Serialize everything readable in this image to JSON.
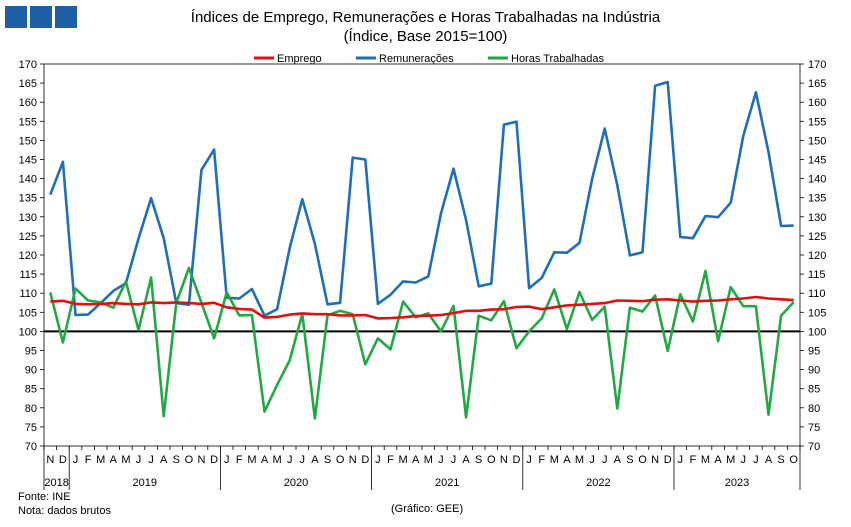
{
  "header": {
    "title": "Índices de Emprego, Remunerações e Horas Trabalhadas na Indústria",
    "subtitle": "(Índice, Base 2015=100)"
  },
  "footer": {
    "source": "Fonte: INE",
    "note": "Nota: dados brutos",
    "credit": "(Gráfico: GEE)"
  },
  "colors": {
    "logo": "#1f5fa8",
    "emprego": "#e01010",
    "remuneracoes": "#1f6fb8",
    "horas": "#22a845",
    "baseline": "#000000"
  },
  "chart_data": {
    "type": "line",
    "title": "Índices de Emprego, Remunerações e Horas Trabalhadas na Indústria",
    "subtitle": "(Índice, Base 2015=100)",
    "ylim": [
      70,
      170
    ],
    "yticks": [
      70,
      75,
      80,
      85,
      90,
      95,
      100,
      105,
      110,
      115,
      120,
      125,
      130,
      135,
      140,
      145,
      150,
      155,
      160,
      165,
      170
    ],
    "grid": false,
    "legend_position": "top",
    "reference_line": 100,
    "x": [
      "N",
      "D",
      "J",
      "F",
      "M",
      "A",
      "M",
      "J",
      "J",
      "A",
      "S",
      "O",
      "N",
      "D",
      "J",
      "F",
      "M",
      "A",
      "M",
      "J",
      "J",
      "A",
      "S",
      "O",
      "N",
      "D",
      "J",
      "F",
      "M",
      "A",
      "M",
      "J",
      "J",
      "A",
      "S",
      "O",
      "N",
      "D",
      "J",
      "F",
      "M",
      "A",
      "M",
      "J",
      "J",
      "A",
      "S",
      "O",
      "N",
      "D",
      "J",
      "F",
      "M",
      "A",
      "M",
      "J",
      "J",
      "A",
      "S",
      "O"
    ],
    "year_groups": [
      {
        "label": "2018",
        "start": 0,
        "end": 1
      },
      {
        "label": "2019",
        "start": 2,
        "end": 13
      },
      {
        "label": "2020",
        "start": 14,
        "end": 25
      },
      {
        "label": "2021",
        "start": 26,
        "end": 37
      },
      {
        "label": "2022",
        "start": 38,
        "end": 49
      },
      {
        "label": "2023",
        "start": 50,
        "end": 59
      }
    ],
    "series": [
      {
        "name": "Emprego",
        "values": [
          107.8,
          108.0,
          107.2,
          107.1,
          107.2,
          107.4,
          107.2,
          107.1,
          107.6,
          107.4,
          107.6,
          107.4,
          107.2,
          107.5,
          106.3,
          105.9,
          105.7,
          103.6,
          103.8,
          104.4,
          104.7,
          104.5,
          104.5,
          104.2,
          104.2,
          104.3,
          103.4,
          103.5,
          103.7,
          104.0,
          104.1,
          104.3,
          104.8,
          105.4,
          105.4,
          105.7,
          105.8,
          106.4,
          106.5,
          105.8,
          106.3,
          106.8,
          107.0,
          107.2,
          107.4,
          108.1,
          108.0,
          107.9,
          108.3,
          108.4,
          108.1,
          107.8,
          108.0,
          108.1,
          108.4,
          108.6,
          109.0,
          108.6,
          108.4,
          108.2
        ]
      },
      {
        "name": "Remunerações",
        "values": [
          135.8,
          144.4,
          104.3,
          104.4,
          107.4,
          110.6,
          112.6,
          124.3,
          134.9,
          124.4,
          107.4,
          107.0,
          142.3,
          147.6,
          108.8,
          108.6,
          111.1,
          104.1,
          105.8,
          121.8,
          134.6,
          122.9,
          107.1,
          107.5,
          145.5,
          145.0,
          107.2,
          109.6,
          113.1,
          112.8,
          114.4,
          130.8,
          142.6,
          129.1,
          111.8,
          112.5,
          154.1,
          154.9,
          111.3,
          114.0,
          120.7,
          120.6,
          123.2,
          139.9,
          153.1,
          138.3,
          119.9,
          120.7,
          164.3,
          165.3,
          124.7,
          124.4,
          130.2,
          129.9,
          133.7,
          151.2,
          162.6,
          147.0,
          127.6,
          127.7
        ]
      },
      {
        "name": "Horas Trabalhadas",
        "values": [
          110.2,
          97.1,
          111.2,
          108.1,
          107.6,
          106.2,
          113.1,
          100.4,
          114.1,
          77.8,
          107.5,
          116.6,
          107.5,
          98.2,
          110.2,
          104.2,
          104.3,
          79.0,
          86.0,
          92.4,
          104.6,
          77.2,
          104.2,
          105.4,
          104.5,
          91.4,
          98.2,
          95.3,
          107.8,
          103.7,
          104.7,
          100.0,
          106.7,
          77.5,
          104.1,
          102.9,
          107.9,
          95.6,
          100.0,
          103.4,
          111.0,
          100.6,
          110.3,
          103.0,
          106.5,
          79.8,
          106.2,
          105.2,
          109.4,
          94.9,
          109.7,
          102.6,
          115.8,
          97.4,
          111.6,
          106.6,
          106.6,
          78.2,
          104.1,
          107.7
        ]
      }
    ]
  }
}
